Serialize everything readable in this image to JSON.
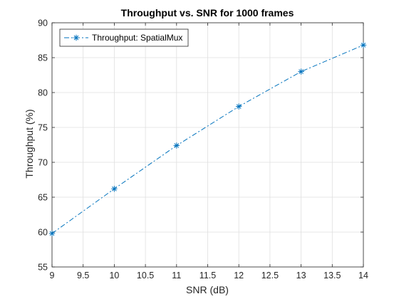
{
  "chart_data": {
    "type": "line",
    "title": "Throughput vs. SNR for 1000 frames",
    "xlabel": "SNR (dB)",
    "ylabel": "Throughput (%)",
    "xlim": [
      9,
      14
    ],
    "ylim": [
      55,
      90
    ],
    "x_ticks": [
      9,
      9.5,
      10,
      10.5,
      11,
      11.5,
      12,
      12.5,
      13,
      13.5,
      14
    ],
    "x_tick_labels": [
      "9",
      "9.5",
      "10",
      "10.5",
      "11",
      "11.5",
      "12",
      "12.5",
      "13",
      "13.5",
      "14"
    ],
    "y_ticks": [
      55,
      60,
      65,
      70,
      75,
      80,
      85,
      90
    ],
    "y_tick_labels": [
      "55",
      "60",
      "65",
      "70",
      "75",
      "80",
      "85",
      "90"
    ],
    "grid": true,
    "legend_position": "top-left",
    "series": [
      {
        "name": "Throughput: SpatialMux",
        "color": "#0072BD",
        "line_style": "dash-dot",
        "marker": "asterisk",
        "x": [
          9,
          10,
          11,
          12,
          13,
          14
        ],
        "y": [
          59.8,
          66.2,
          72.4,
          78.0,
          83.0,
          86.8
        ]
      }
    ]
  }
}
